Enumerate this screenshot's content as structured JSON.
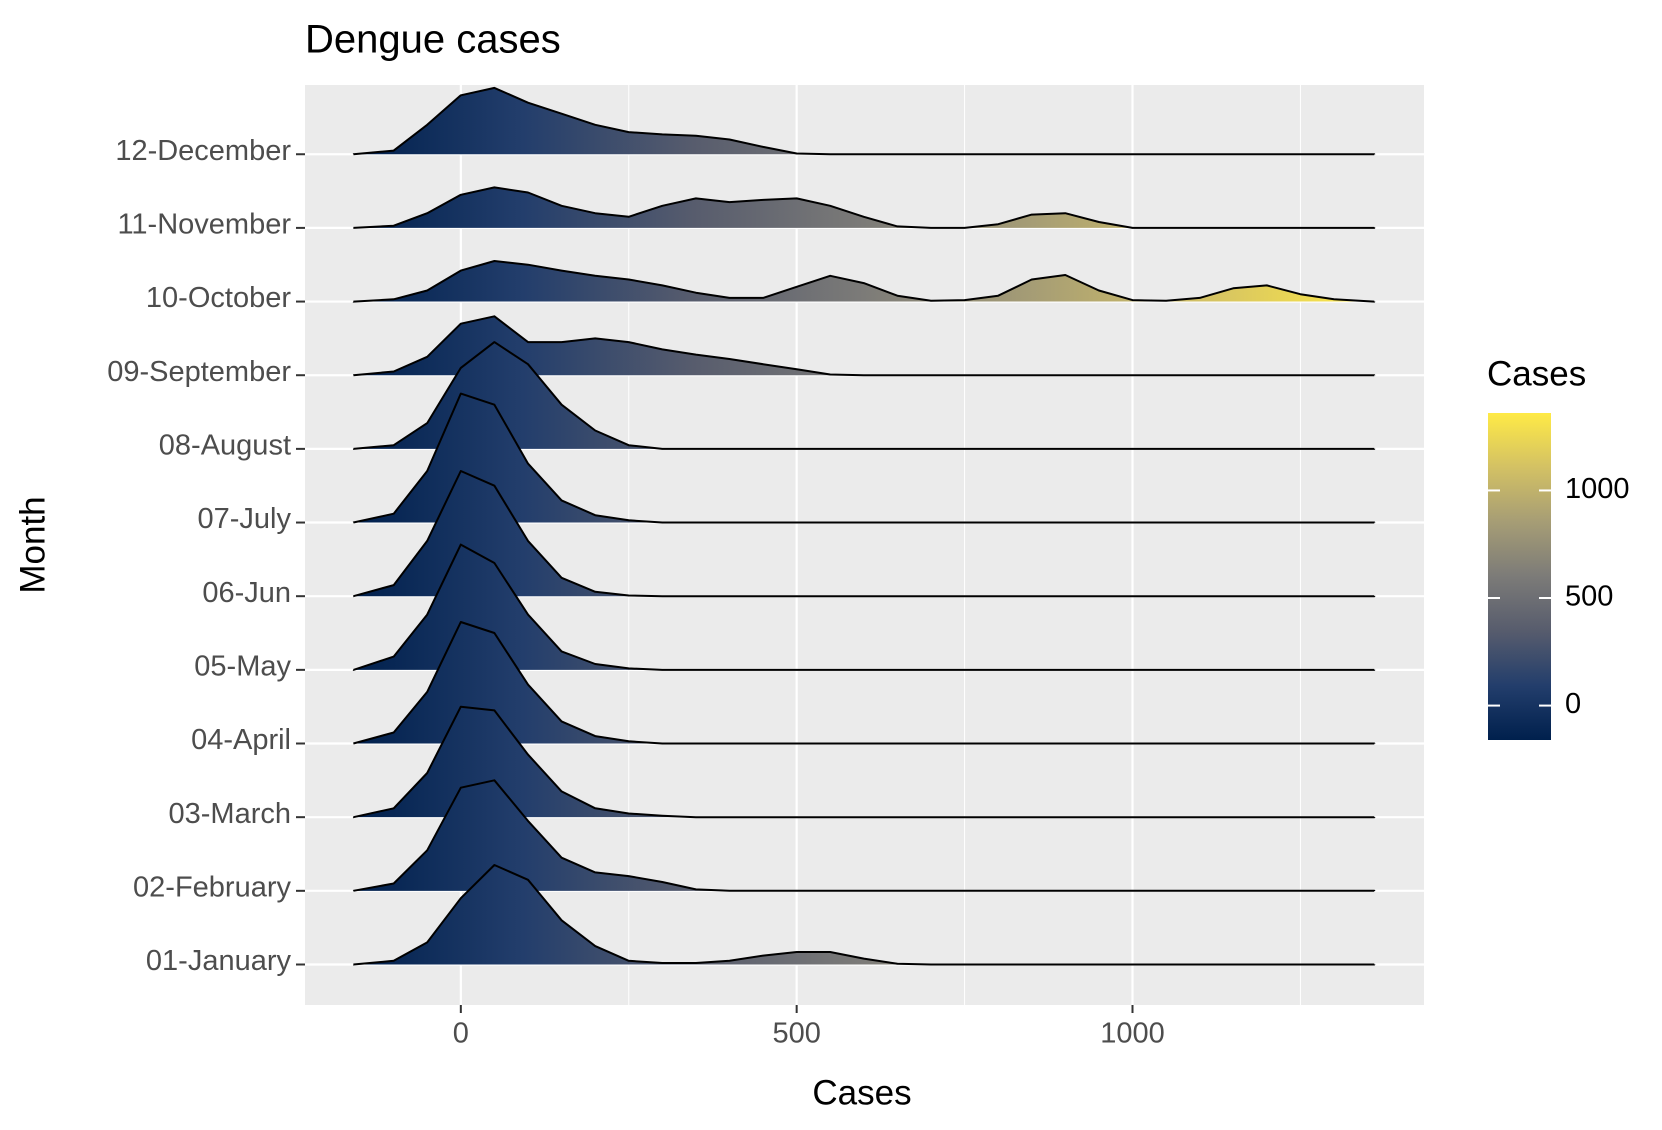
{
  "chart_data": {
    "type": "ridgeline",
    "title": "Dengue cases",
    "x_label": "Cases",
    "y_label": "Month",
    "legend_title": "Cases",
    "xlim": [
      -232,
      1434
    ],
    "xticks": [
      0,
      500,
      1000
    ],
    "xminor": [
      250,
      750,
      1250
    ],
    "grid": true,
    "colorscale": [
      "#00204D",
      "#233E6C",
      "#575C6D",
      "#7C7B78",
      "#A69D75",
      "#D3C164",
      "#FFEA46"
    ],
    "colorscale_lim": [
      -160,
      1360
    ],
    "legend_ticks": [
      0,
      500,
      1000
    ],
    "x": [
      -160,
      -100,
      -50,
      0,
      50,
      100,
      150,
      200,
      250,
      300,
      350,
      400,
      450,
      500,
      550,
      600,
      650,
      700,
      750,
      800,
      850,
      900,
      950,
      1000,
      1050,
      1100,
      1150,
      1200,
      1250,
      1300,
      1360
    ],
    "series": [
      {
        "name": "01-January",
        "values": [
          0,
          0.05,
          0.3,
          0.9,
          1.35,
          1.15,
          0.6,
          0.25,
          0.05,
          0.02,
          0.02,
          0.05,
          0.12,
          0.17,
          0.17,
          0.08,
          0.01,
          0,
          0,
          0,
          0,
          0,
          0,
          0,
          0,
          0,
          0,
          0,
          0,
          0,
          0
        ]
      },
      {
        "name": "02-February",
        "values": [
          0,
          0.1,
          0.55,
          1.4,
          1.5,
          0.95,
          0.45,
          0.25,
          0.2,
          0.12,
          0.02,
          0,
          0,
          0,
          0,
          0,
          0,
          0,
          0,
          0,
          0,
          0,
          0,
          0,
          0,
          0,
          0,
          0,
          0,
          0,
          0
        ]
      },
      {
        "name": "03-March",
        "values": [
          0,
          0.12,
          0.6,
          1.5,
          1.45,
          0.85,
          0.35,
          0.12,
          0.05,
          0.02,
          0,
          0,
          0,
          0,
          0,
          0,
          0,
          0,
          0,
          0,
          0,
          0,
          0,
          0,
          0,
          0,
          0,
          0,
          0,
          0,
          0
        ]
      },
      {
        "name": "04-April",
        "values": [
          0,
          0.15,
          0.7,
          1.65,
          1.5,
          0.8,
          0.3,
          0.1,
          0.03,
          0,
          0,
          0,
          0,
          0,
          0,
          0,
          0,
          0,
          0,
          0,
          0,
          0,
          0,
          0,
          0,
          0,
          0,
          0,
          0,
          0,
          0
        ]
      },
      {
        "name": "05-May",
        "values": [
          0,
          0.18,
          0.75,
          1.7,
          1.45,
          0.75,
          0.25,
          0.08,
          0.02,
          0,
          0,
          0,
          0,
          0,
          0,
          0,
          0,
          0,
          0,
          0,
          0,
          0,
          0,
          0,
          0,
          0,
          0,
          0,
          0,
          0,
          0
        ]
      },
      {
        "name": "06-Jun",
        "values": [
          0,
          0.15,
          0.75,
          1.7,
          1.5,
          0.75,
          0.25,
          0.06,
          0.01,
          0,
          0,
          0,
          0,
          0,
          0,
          0,
          0,
          0,
          0,
          0,
          0,
          0,
          0,
          0,
          0,
          0,
          0,
          0,
          0,
          0,
          0
        ]
      },
      {
        "name": "07-July",
        "values": [
          0,
          0.12,
          0.7,
          1.75,
          1.6,
          0.8,
          0.3,
          0.1,
          0.03,
          0,
          0,
          0,
          0,
          0,
          0,
          0,
          0,
          0,
          0,
          0,
          0,
          0,
          0,
          0,
          0,
          0,
          0,
          0,
          0,
          0,
          0
        ]
      },
      {
        "name": "08-August",
        "values": [
          0,
          0.05,
          0.35,
          1.1,
          1.45,
          1.15,
          0.6,
          0.25,
          0.05,
          0,
          0,
          0,
          0,
          0,
          0,
          0,
          0,
          0,
          0,
          0,
          0,
          0,
          0,
          0,
          0,
          0,
          0,
          0,
          0,
          0,
          0
        ]
      },
      {
        "name": "09-September",
        "values": [
          0,
          0.05,
          0.25,
          0.7,
          0.8,
          0.45,
          0.45,
          0.5,
          0.45,
          0.35,
          0.28,
          0.22,
          0.15,
          0.08,
          0.01,
          0,
          0,
          0,
          0,
          0,
          0,
          0,
          0,
          0,
          0,
          0,
          0,
          0,
          0,
          0,
          0
        ]
      },
      {
        "name": "10-October",
        "values": [
          0,
          0.03,
          0.15,
          0.42,
          0.55,
          0.5,
          0.42,
          0.35,
          0.3,
          0.22,
          0.12,
          0.05,
          0.05,
          0.2,
          0.35,
          0.25,
          0.08,
          0.01,
          0.02,
          0.08,
          0.3,
          0.36,
          0.15,
          0.02,
          0.01,
          0.05,
          0.18,
          0.22,
          0.1,
          0.03,
          0
        ]
      },
      {
        "name": "11-November",
        "values": [
          0,
          0.03,
          0.2,
          0.45,
          0.55,
          0.48,
          0.3,
          0.2,
          0.15,
          0.3,
          0.4,
          0.35,
          0.38,
          0.4,
          0.3,
          0.15,
          0.02,
          0,
          0,
          0.05,
          0.18,
          0.2,
          0.08,
          0,
          0,
          0,
          0,
          0,
          0,
          0,
          0
        ]
      },
      {
        "name": "12-December",
        "values": [
          0,
          0.05,
          0.4,
          0.8,
          0.9,
          0.7,
          0.55,
          0.4,
          0.3,
          0.27,
          0.25,
          0.2,
          0.1,
          0.01,
          0,
          0,
          0,
          0,
          0,
          0,
          0,
          0,
          0,
          0,
          0,
          0,
          0,
          0,
          0,
          0,
          0
        ]
      }
    ]
  }
}
